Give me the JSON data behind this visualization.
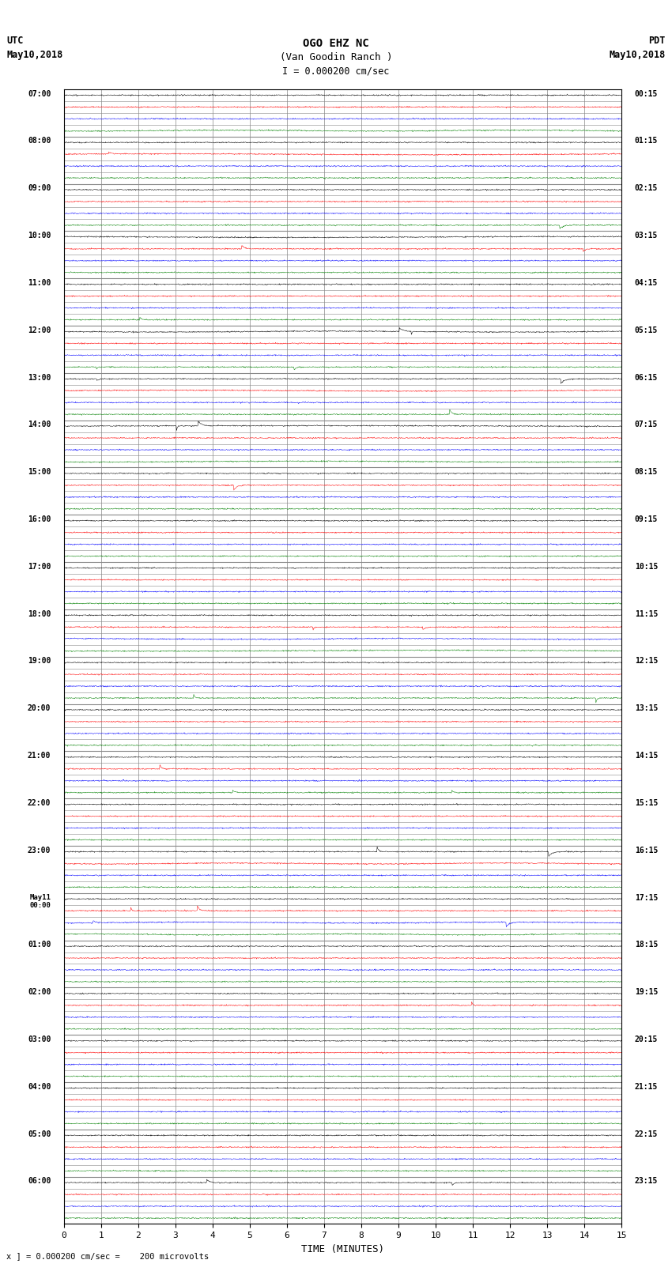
{
  "title_line1": "OGO EHZ NC",
  "title_line2": "(Van Goodin Ranch )",
  "title_line3": "I = 0.000200 cm/sec",
  "label_utc": "UTC",
  "label_date_left": "May10,2018",
  "label_pdt": "PDT",
  "label_date_right": "May10,2018",
  "xlabel": "TIME (MINUTES)",
  "footnote": "x ] = 0.000200 cm/sec =    200 microvolts",
  "xlim": [
    0,
    15
  ],
  "xticks": [
    0,
    1,
    2,
    3,
    4,
    5,
    6,
    7,
    8,
    9,
    10,
    11,
    12,
    13,
    14,
    15
  ],
  "bg_color": "white",
  "grid_color": "#888888",
  "noise_amplitude": 0.025,
  "colors_cycle": [
    "black",
    "red",
    "blue",
    "green"
  ],
  "utc_labels_raw": [
    "07:00",
    "08:00",
    "09:00",
    "10:00",
    "11:00",
    "12:00",
    "13:00",
    "14:00",
    "15:00",
    "16:00",
    "17:00",
    "18:00",
    "19:00",
    "20:00",
    "21:00",
    "22:00",
    "23:00",
    "May11\n00:00",
    "01:00",
    "02:00",
    "03:00",
    "04:00",
    "05:00",
    "06:00"
  ],
  "pdt_labels_raw": [
    "00:15",
    "01:15",
    "02:15",
    "03:15",
    "04:15",
    "05:15",
    "06:15",
    "07:15",
    "08:15",
    "09:15",
    "10:15",
    "11:15",
    "12:15",
    "13:15",
    "14:15",
    "15:15",
    "16:15",
    "17:15",
    "18:15",
    "19:15",
    "20:15",
    "21:15",
    "22:15",
    "23:15"
  ],
  "num_hours": 24,
  "rows_per_hour": 4
}
